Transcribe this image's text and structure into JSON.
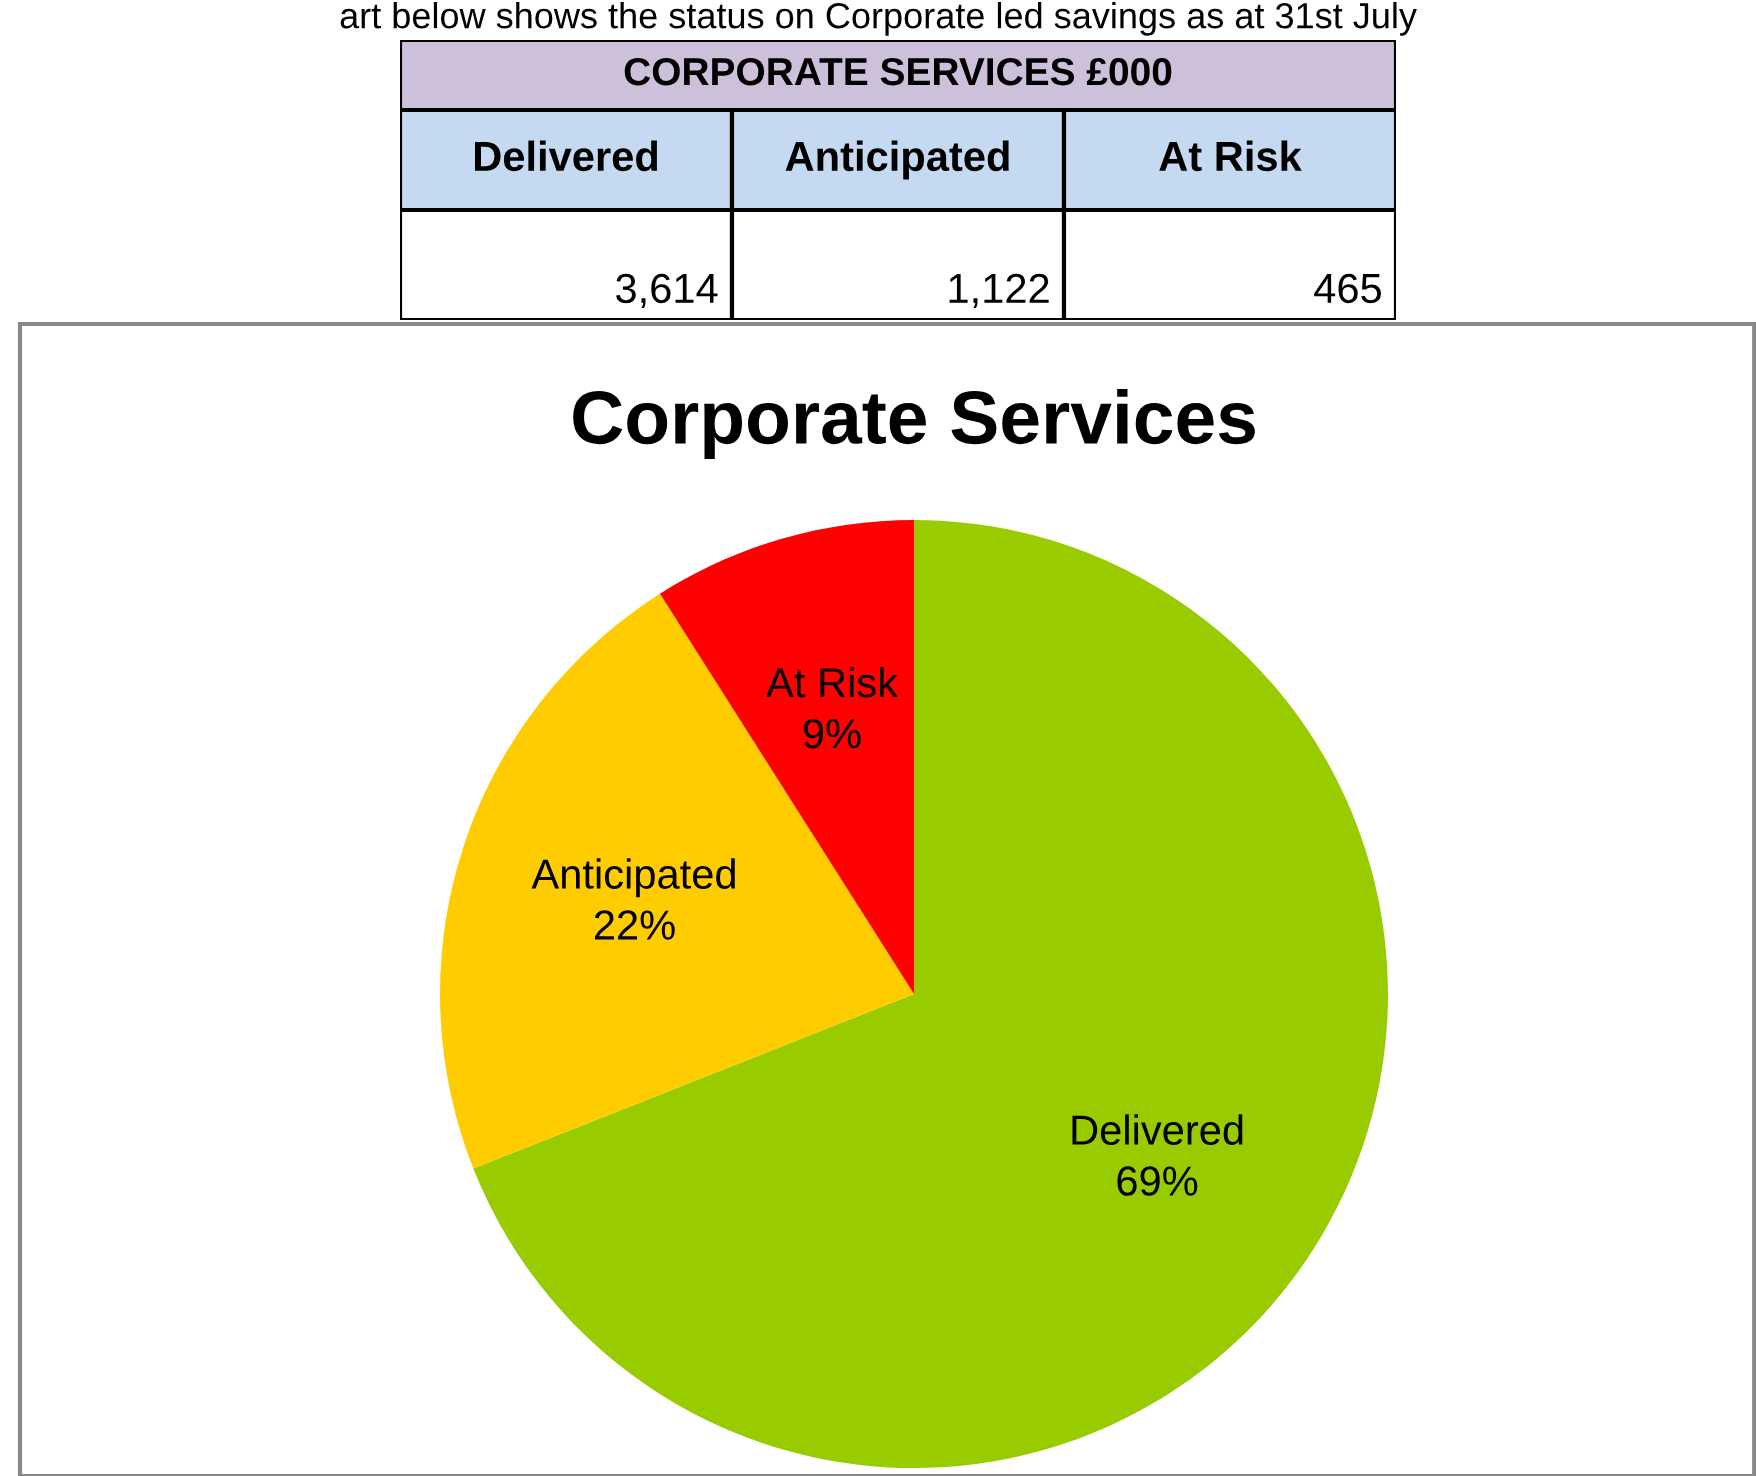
{
  "chart_data": [
    {
      "type": "other",
      "title": "CORPORATE SERVICES £000",
      "categories": [
        "Delivered",
        "Anticipated",
        "At Risk"
      ],
      "values": [
        3614,
        1122,
        465
      ],
      "value_labels": [
        "3,614",
        "1,122",
        "465"
      ],
      "annotations": [
        "art below shows the status on Corporate led savings as at 31st July"
      ]
    },
    {
      "type": "pie",
      "title": "Corporate Services",
      "categories": [
        "Delivered",
        "Anticipated",
        "At Risk"
      ],
      "values": [
        69,
        22,
        9
      ],
      "value_labels": [
        "69%",
        "22%",
        "9%"
      ],
      "colors": [
        "#99cc00",
        "#ffcc00",
        "#ff0000"
      ],
      "legend": false
    }
  ]
}
